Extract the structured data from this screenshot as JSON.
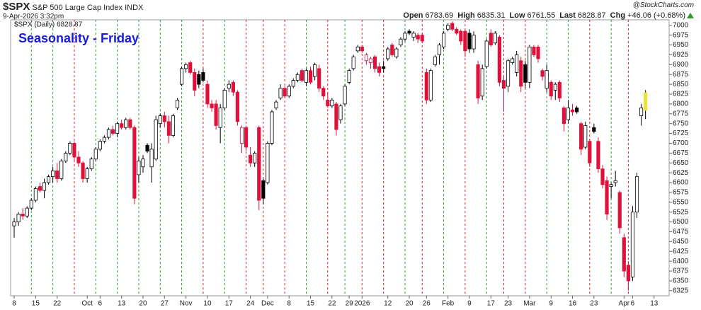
{
  "header": {
    "symbol": "$SPX",
    "name": "S&P 500 Large Cap Index INDX",
    "timestamp": "9-Apr-2026 3:32pm",
    "source": "@StockCharts.com",
    "quote": [
      {
        "label": "Open",
        "value": "6783.69"
      },
      {
        "label": "High",
        "value": "6835.31"
      },
      {
        "label": "Low",
        "value": "6761.55"
      },
      {
        "label": "Last",
        "value": "6828.87"
      },
      {
        "label": "Chg",
        "value": "+46.06 (+0.68%)"
      }
    ]
  },
  "chart_data": {
    "type": "candlestick",
    "title": "Seasonality - Friday",
    "categories": [
      "8",
      null,
      null,
      null,
      null,
      "15",
      null,
      null,
      null,
      null,
      "22",
      null,
      null,
      null,
      null,
      null,
      null,
      "Oct",
      null,
      null,
      "6",
      null,
      null,
      null,
      null,
      "13",
      null,
      null,
      null,
      null,
      "20",
      null,
      null,
      null,
      null,
      "27",
      null,
      null,
      null,
      null,
      "Nov",
      null,
      null,
      null,
      null,
      "10",
      null,
      null,
      null,
      null,
      "17",
      null,
      null,
      null,
      null,
      "24",
      null,
      null,
      null,
      "Dec",
      null,
      null,
      null,
      null,
      "8",
      null,
      null,
      null,
      null,
      "15",
      null,
      null,
      null,
      null,
      "22",
      null,
      null,
      null,
      "29",
      null,
      null,
      "2026",
      null,
      null,
      null,
      null,
      null,
      "12",
      null,
      null,
      null,
      null,
      "20",
      null,
      null,
      null,
      "26",
      null,
      null,
      null,
      null,
      "Feb",
      null,
      null,
      null,
      null,
      "9",
      null,
      null,
      null,
      null,
      "17",
      null,
      null,
      null,
      "23",
      null,
      null,
      null,
      null,
      "Mar",
      null,
      null,
      null,
      null,
      "9",
      null,
      null,
      null,
      null,
      "16",
      null,
      null,
      null,
      null,
      "23",
      null,
      null,
      null,
      null,
      null,
      null,
      "Apr",
      null,
      "6",
      null,
      null,
      null,
      null,
      "13",
      null,
      null,
      null
    ],
    "series": [
      {
        "name": "$SPX (Daily) 6828.87",
        "open": [
          6490,
          6500,
          6520,
          6515,
          6535,
          6555,
          6590,
          6580,
          6600,
          6615,
          6630,
          6610,
          6655,
          6675,
          6700,
          6665,
          6650,
          6610,
          6635,
          6660,
          6685,
          6705,
          6715,
          6735,
          6725,
          6750,
          6740,
          6760,
          6740,
          6620,
          6640,
          6695,
          6640,
          6660,
          6750,
          6770,
          6755,
          6720,
          6790,
          6850,
          6890,
          6905,
          6880,
          6875,
          6880,
          6850,
          6800,
          6800,
          6740,
          6790,
          6840,
          6855,
          6830,
          6700,
          6740,
          6670,
          6650,
          6740,
          6605,
          6600,
          6700,
          6790,
          6815,
          6840,
          6820,
          6845,
          6860,
          6885,
          6855,
          6885,
          6870,
          6890,
          6840,
          6810,
          6795,
          6800,
          6760,
          6800,
          6855,
          6890,
          6935,
          6945,
          6910,
          6905,
          6920,
          6895,
          6895,
          6915,
          6950,
          6920,
          6950,
          6965,
          6985,
          6970,
          6975,
          6975,
          6880,
          6810,
          6900,
          6925,
          6945,
          6990,
          7005,
          6990,
          6985,
          6985,
          6980,
          6940,
          6900,
          6820,
          6895,
          6980,
          6955,
          6970,
          6860,
          6845,
          6905,
          6880,
          6910,
          6900,
          6855,
          6945,
          6945,
          6885,
          6840,
          6855,
          6835,
          6855,
          6790,
          6760,
          6785,
          6790,
          6750,
          6690,
          6705,
          6740,
          6705,
          6635,
          6605,
          6590,
          6600,
          6575,
          6460,
          6390,
          6360,
          6525,
          6770,
          6783.69,
          null,
          null,
          null,
          null,
          null
        ],
        "high": [
          6510,
          6525,
          6535,
          6540,
          6560,
          6590,
          6600,
          6610,
          6620,
          6640,
          6650,
          6660,
          6680,
          6705,
          6705,
          6680,
          6655,
          6640,
          6665,
          6690,
          6710,
          6720,
          6740,
          6745,
          6755,
          6760,
          6765,
          6765,
          6745,
          6665,
          6670,
          6700,
          6700,
          6770,
          6775,
          6780,
          6770,
          6775,
          6815,
          6895,
          6905,
          6910,
          6890,
          6885,
          6890,
          6860,
          6810,
          6810,
          6800,
          6840,
          6860,
          6860,
          6835,
          6745,
          6745,
          6690,
          6680,
          6745,
          6610,
          6705,
          6785,
          6810,
          6850,
          6845,
          6850,
          6865,
          6880,
          6890,
          6890,
          6895,
          6905,
          6900,
          6845,
          6830,
          6815,
          6805,
          6800,
          6850,
          6890,
          6925,
          6950,
          6950,
          6930,
          6920,
          6925,
          6905,
          6910,
          6945,
          6955,
          6945,
          6970,
          6985,
          6990,
          6985,
          6980,
          6980,
          6890,
          6890,
          6925,
          6955,
          6985,
          7005,
          7010,
          6995,
          6990,
          6990,
          6990,
          6985,
          6910,
          6900,
          6965,
          6990,
          6985,
          6975,
          6870,
          6915,
          6920,
          6935,
          6920,
          6910,
          6950,
          6950,
          6950,
          6890,
          6900,
          6860,
          6855,
          6860,
          6795,
          6810,
          6800,
          6795,
          6755,
          6755,
          6710,
          6750,
          6715,
          6645,
          6615,
          6600,
          6630,
          6580,
          6470,
          6400,
          6540,
          6625,
          6800,
          6835.31,
          null,
          null,
          null,
          null,
          null
        ],
        "low": [
          6460,
          6490,
          6505,
          6510,
          6530,
          6550,
          6575,
          6560,
          6595,
          6600,
          6600,
          6605,
          6650,
          6670,
          6655,
          6640,
          6600,
          6600,
          6630,
          6655,
          6680,
          6700,
          6710,
          6720,
          6715,
          6735,
          6735,
          6735,
          6545,
          6600,
          6625,
          6675,
          6600,
          6655,
          6740,
          6740,
          6700,
          6715,
          6785,
          6845,
          6880,
          6875,
          6820,
          6840,
          6855,
          6790,
          6780,
          6735,
          6700,
          6785,
          6830,
          6820,
          6745,
          6675,
          6680,
          6640,
          6640,
          6530,
          6545,
          6595,
          6695,
          6785,
          6810,
          6815,
          6815,
          6840,
          6855,
          6855,
          6845,
          6850,
          6860,
          6830,
          6810,
          6790,
          6790,
          6720,
          6750,
          6795,
          6850,
          6885,
          6930,
          6930,
          6900,
          6890,
          6880,
          6870,
          6880,
          6910,
          6920,
          6915,
          6945,
          6960,
          6975,
          6960,
          6955,
          6955,
          6800,
          6805,
          6895,
          6900,
          6940,
          6985,
          6985,
          6975,
          6950,
          6920,
          6930,
          6930,
          6800,
          6810,
          6890,
          6945,
          6950,
          6845,
          6780,
          6830,
          6900,
          6870,
          6830,
          6840,
          6840,
          6920,
          6905,
          6860,
          6830,
          6810,
          6810,
          6805,
          6730,
          6750,
          6770,
          6775,
          6670,
          6685,
          6640,
          6725,
          6625,
          6585,
          6505,
          6560,
          6590,
          6470,
          6360,
          6325,
          6350,
          6510,
          6745,
          6761.55,
          null,
          null,
          null,
          null,
          null
        ],
        "close": [
          6500,
          6520,
          6515,
          6535,
          6555,
          6585,
          6580,
          6600,
          6615,
          6630,
          6610,
          6655,
          6675,
          6700,
          6665,
          6650,
          6610,
          6635,
          6660,
          6685,
          6705,
          6715,
          6735,
          6725,
          6750,
          6740,
          6760,
          6740,
          6560,
          6655,
          6660,
          6680,
          6685,
          6760,
          6770,
          6755,
          6720,
          6770,
          6810,
          6890,
          6900,
          6880,
          6835,
          6850,
          6860,
          6800,
          6790,
          6745,
          6790,
          6835,
          6850,
          6830,
          6755,
          6740,
          6690,
          6650,
          6675,
          6555,
          6560,
          6700,
          6780,
          6805,
          6840,
          6820,
          6845,
          6860,
          6875,
          6860,
          6885,
          6855,
          6900,
          6840,
          6820,
          6795,
          6810,
          6735,
          6795,
          6845,
          6885,
          6920,
          6945,
          6935,
          6925,
          6915,
          6890,
          6880,
          6890,
          6940,
          6925,
          6940,
          6965,
          6980,
          6980,
          6980,
          6965,
          6960,
          6810,
          6885,
          6920,
          6950,
          6980,
          7000,
          6990,
          6980,
          6960,
          6935,
          6940,
          6975,
          6815,
          6890,
          6960,
          6950,
          6980,
          6855,
          6840,
          6910,
          6915,
          6925,
          6845,
          6855,
          6945,
          6925,
          6915,
          6870,
          6885,
          6820,
          6850,
          6815,
          6750,
          6790,
          6780,
          6780,
          6685,
          6745,
          6650,
          6730,
          6635,
          6595,
          6520,
          6595,
          6605,
          6485,
          6375,
          6350,
          6525,
          6615,
          6790,
          6828.87,
          null,
          null,
          null,
          null,
          null
        ]
      }
    ],
    "ylim": [
      6312,
      7014
    ],
    "yticks": [
      6325,
      6350,
      6375,
      6400,
      6425,
      6450,
      6475,
      6500,
      6525,
      6550,
      6575,
      6600,
      6625,
      6650,
      6675,
      6700,
      6725,
      6750,
      6775,
      6800,
      6825,
      6850,
      6875,
      6900,
      6925,
      6950,
      6975,
      7000
    ],
    "up_color": "#000000",
    "down_color": "#e0103a",
    "last_color": "#ece23c",
    "friday_up_color": "#2f9a2f",
    "friday_down_color": "#d8202a",
    "title_color": "#1a1adc"
  }
}
